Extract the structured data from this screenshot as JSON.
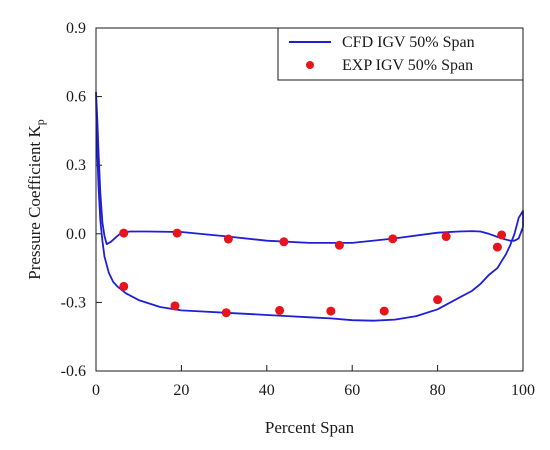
{
  "chart_data": {
    "type": "scatter",
    "xlabel": "Percent Span",
    "ylabel": "Pressure Coefficient K",
    "ylabel_sub": "p",
    "xlim": [
      0,
      100
    ],
    "ylim": [
      -0.6,
      0.9
    ],
    "xticks": [
      0,
      20,
      40,
      60,
      80,
      100
    ],
    "yticks": [
      -0.6,
      -0.3,
      0.0,
      0.3,
      0.6,
      0.9
    ],
    "xtick_labels": [
      "0",
      "20",
      "40",
      "60",
      "80",
      "100"
    ],
    "ytick_labels": [
      "-0.6",
      "-0.3",
      "0.0",
      "0.3",
      "0.6",
      "0.9"
    ],
    "grid": false,
    "legend_position": "top-right",
    "series": [
      {
        "name": "CFD IGV 50% Span",
        "kind": "line",
        "color": "#1f1fd6",
        "x": [
          0.0,
          0.3,
          0.6,
          1.0,
          1.5,
          2.0,
          2.5,
          3.5,
          5,
          6,
          8,
          12,
          20,
          30,
          40,
          50,
          55,
          60,
          70,
          80,
          85,
          88,
          90,
          92,
          95,
          97,
          98,
          99,
          100,
          100,
          99,
          98,
          97,
          96,
          95,
          94,
          92,
          90,
          88,
          85,
          80,
          75,
          70,
          65,
          60,
          55,
          50,
          45,
          40,
          35,
          30,
          25,
          20,
          15,
          10,
          7,
          5,
          4,
          3,
          2,
          1.5,
          1,
          0.6,
          0.3,
          0.1,
          0
        ],
        "y": [
          0.62,
          0.5,
          0.35,
          0.18,
          0.05,
          -0.01,
          -0.045,
          -0.035,
          -0.01,
          0.005,
          0.01,
          0.01,
          0.008,
          -0.01,
          -0.03,
          -0.04,
          -0.04,
          -0.04,
          -0.02,
          0.005,
          0.01,
          0.012,
          0.01,
          0.0,
          -0.02,
          -0.03,
          -0.03,
          -0.02,
          0.03,
          0.1,
          0.07,
          0.0,
          -0.05,
          -0.09,
          -0.12,
          -0.15,
          -0.18,
          -0.22,
          -0.25,
          -0.28,
          -0.33,
          -0.36,
          -0.375,
          -0.38,
          -0.378,
          -0.37,
          -0.365,
          -0.36,
          -0.355,
          -0.35,
          -0.345,
          -0.34,
          -0.335,
          -0.32,
          -0.29,
          -0.26,
          -0.23,
          -0.21,
          -0.17,
          -0.1,
          -0.03,
          0.06,
          0.2,
          0.35,
          0.5,
          0.62
        ]
      },
      {
        "name": "EXP IGV 50% Span",
        "kind": "scatter",
        "color": "#e8141c",
        "x": [
          6.5,
          19,
          31,
          44,
          57,
          69.5,
          82,
          95,
          6.5,
          18.5,
          30.5,
          43,
          55,
          67.5,
          80,
          94
        ],
        "y": [
          0.003,
          0.003,
          -0.023,
          -0.035,
          -0.05,
          -0.022,
          -0.012,
          -0.005,
          -0.23,
          -0.315,
          -0.345,
          -0.335,
          -0.338,
          -0.338,
          -0.288,
          -0.058
        ]
      }
    ]
  }
}
